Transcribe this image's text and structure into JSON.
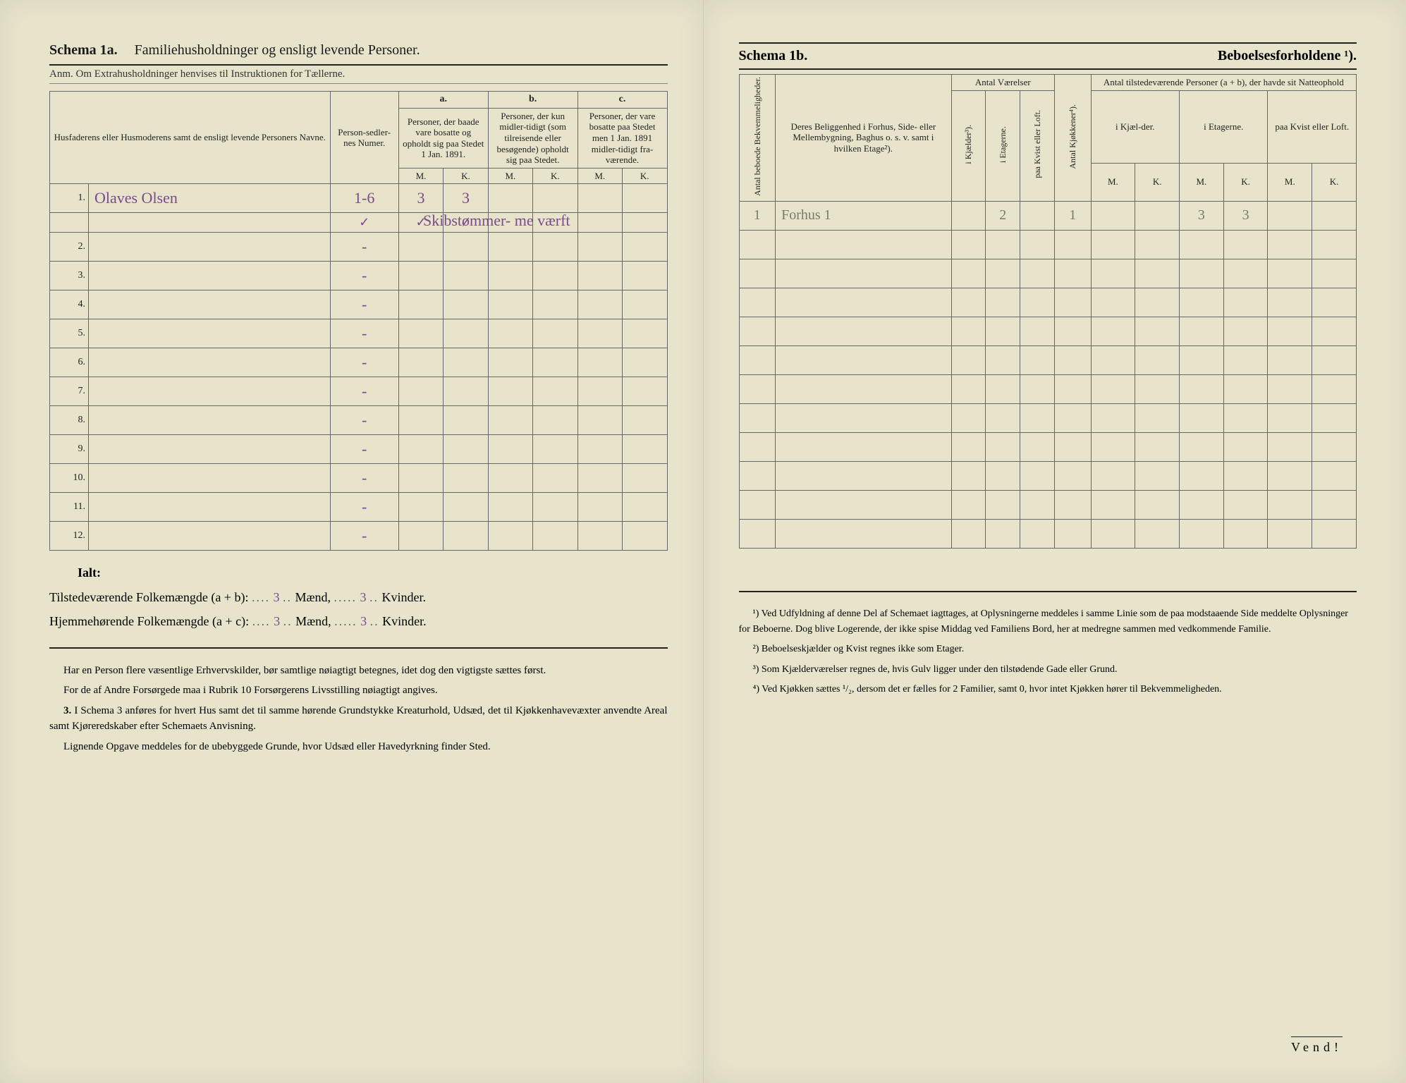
{
  "left": {
    "schemaLabel": "Schema 1a.",
    "schemaTitle": "Familiehusholdninger og ensligt levende Personer.",
    "anm": "Anm. Om Extrahusholdninger henvises til Instruktionen for Tællerne.",
    "header": {
      "names": "Husfaderens eller Husmoderens samt de ensligt levende Personers Navne.",
      "personsedler": "Person-sedler-nes Numer.",
      "a_label": "a.",
      "b_label": "b.",
      "c_label": "c.",
      "a_text": "Personer, der baade vare bosatte og opholdt sig paa Stedet 1 Jan. 1891.",
      "b_text": "Personer, der kun midler-tidigt (som tilreisende eller besøgende) opholdt sig paa Stedet.",
      "c_text": "Personer, der vare bosatte paa Stedet men 1 Jan. 1891 midler-tidigt fra-værende.",
      "M": "M.",
      "K": "K."
    },
    "rows": [
      {
        "n": "1.",
        "name": "Olaves Olsen",
        "ps": "1-6",
        "aM": "3",
        "aK": "3",
        "bM": "",
        "bK": "",
        "cM": "",
        "cK": ""
      },
      {
        "n": "2.",
        "name": "",
        "ps": "-",
        "aM": "",
        "aK": "",
        "bM": "",
        "bK": "",
        "cM": "",
        "cK": ""
      },
      {
        "n": "3.",
        "name": "",
        "ps": "-",
        "aM": "",
        "aK": "",
        "bM": "",
        "bK": "",
        "cM": "",
        "cK": ""
      },
      {
        "n": "4.",
        "name": "",
        "ps": "-",
        "aM": "",
        "aK": "",
        "bM": "",
        "bK": "",
        "cM": "",
        "cK": ""
      },
      {
        "n": "5.",
        "name": "",
        "ps": "-",
        "aM": "",
        "aK": "",
        "bM": "",
        "bK": "",
        "cM": "",
        "cK": ""
      },
      {
        "n": "6.",
        "name": "",
        "ps": "-",
        "aM": "",
        "aK": "",
        "bM": "",
        "bK": "",
        "cM": "",
        "cK": ""
      },
      {
        "n": "7.",
        "name": "",
        "ps": "-",
        "aM": "",
        "aK": "",
        "bM": "",
        "bK": "",
        "cM": "",
        "cK": ""
      },
      {
        "n": "8.",
        "name": "",
        "ps": "-",
        "aM": "",
        "aK": "",
        "bM": "",
        "bK": "",
        "cM": "",
        "cK": ""
      },
      {
        "n": "9.",
        "name": "",
        "ps": "-",
        "aM": "",
        "aK": "",
        "bM": "",
        "bK": "",
        "cM": "",
        "cK": ""
      },
      {
        "n": "10.",
        "name": "",
        "ps": "-",
        "aM": "",
        "aK": "",
        "bM": "",
        "bK": "",
        "cM": "",
        "cK": ""
      },
      {
        "n": "11.",
        "name": "",
        "ps": "-",
        "aM": "",
        "aK": "",
        "bM": "",
        "bK": "",
        "cM": "",
        "cK": ""
      },
      {
        "n": "12.",
        "name": "",
        "ps": "-",
        "aM": "",
        "aK": "",
        "bM": "",
        "bK": "",
        "cM": "",
        "cK": ""
      }
    ],
    "ticks_row2": {
      "ps": "✓",
      "aM": "✓",
      "aK": "✓"
    },
    "overlay_note": "Skibstømmer-\nme værft",
    "ialt": "Ialt:",
    "tilstede_label": "Tilstedeværende Folkemængde (a + b):",
    "hjemme_label": "Hjemmehørende Folkemængde (a + c):",
    "maend": "Mænd,",
    "kvinder": "Kvinder.",
    "tilstede_m": "3",
    "tilstede_k": "3",
    "hjemme_m": "3",
    "hjemme_k": "3",
    "footer": {
      "p1": "Har en Person flere væsentlige Erhvervskilder, bør samtlige nøiagtigt betegnes, idet dog den vigtigste sættes først.",
      "p2": "For de af Andre Forsørgede maa i Rubrik 10 Forsørgerens Livsstilling nøiagtigt angives.",
      "p3num": "3.",
      "p3": "I Schema 3 anføres for hvert Hus samt det til samme hørende Grundstykke Kreaturhold, Udsæd, det til Kjøkkenhavevæxter anvendte Areal samt Kjøreredskaber efter Schemaets Anvisning.",
      "p4": "Lignende Opgave meddeles for de ubebyggede Grunde, hvor Udsæd eller Havedyrkning finder Sted."
    }
  },
  "right": {
    "schemaLabel": "Schema 1b.",
    "schemaTitle": "Beboelsesforholdene ¹).",
    "header": {
      "antal_bekv": "Antal beboede Bekvemmeligheder.",
      "deres": "Deres Beliggenhed i Forhus, Side- eller Mellembygning, Baghus o. s. v. samt i hvilken Etage²).",
      "antal_vaer": "Antal Værelser",
      "i_kjaelder": "i Kjælder³).",
      "i_etagerne": "i Etagerne.",
      "paa_kvist": "paa Kvist eller Loft.",
      "antal_kjokken": "Antal Kjøkkener⁴).",
      "antal_pers": "Antal tilstedeværende Personer (a + b), der havde sit Natteophold",
      "i_kjael": "i Kjæl-der.",
      "i_etag": "i Etagerne.",
      "paa_kv": "paa Kvist eller Loft.",
      "M": "M.",
      "K": "K."
    },
    "rows": [
      {
        "bekv": "1",
        "bel": "Forhus 1",
        "kj": "",
        "et": "2",
        "kv": "",
        "kjok": "1",
        "natKjM": "",
        "natKjK": "",
        "natEtM": "3",
        "natEtK": "3",
        "natKvM": "",
        "natKvK": ""
      },
      {
        "bekv": "",
        "bel": "",
        "kj": "",
        "et": "",
        "kv": "",
        "kjok": "",
        "natKjM": "",
        "natKjK": "",
        "natEtM": "",
        "natEtK": "",
        "natKvM": "",
        "natKvK": ""
      },
      {
        "bekv": "",
        "bel": "",
        "kj": "",
        "et": "",
        "kv": "",
        "kjok": "",
        "natKjM": "",
        "natKjK": "",
        "natEtM": "",
        "natEtK": "",
        "natKvM": "",
        "natKvK": ""
      },
      {
        "bekv": "",
        "bel": "",
        "kj": "",
        "et": "",
        "kv": "",
        "kjok": "",
        "natKjM": "",
        "natKjK": "",
        "natEtM": "",
        "natEtK": "",
        "natKvM": "",
        "natKvK": ""
      },
      {
        "bekv": "",
        "bel": "",
        "kj": "",
        "et": "",
        "kv": "",
        "kjok": "",
        "natKjM": "",
        "natKjK": "",
        "natEtM": "",
        "natEtK": "",
        "natKvM": "",
        "natKvK": ""
      },
      {
        "bekv": "",
        "bel": "",
        "kj": "",
        "et": "",
        "kv": "",
        "kjok": "",
        "natKjM": "",
        "natKjK": "",
        "natEtM": "",
        "natEtK": "",
        "natKvM": "",
        "natKvK": ""
      },
      {
        "bekv": "",
        "bel": "",
        "kj": "",
        "et": "",
        "kv": "",
        "kjok": "",
        "natKjM": "",
        "natKjK": "",
        "natEtM": "",
        "natEtK": "",
        "natKvM": "",
        "natKvK": ""
      },
      {
        "bekv": "",
        "bel": "",
        "kj": "",
        "et": "",
        "kv": "",
        "kjok": "",
        "natKjM": "",
        "natKjK": "",
        "natEtM": "",
        "natEtK": "",
        "natKvM": "",
        "natKvK": ""
      },
      {
        "bekv": "",
        "bel": "",
        "kj": "",
        "et": "",
        "kv": "",
        "kjok": "",
        "natKjM": "",
        "natKjK": "",
        "natEtM": "",
        "natEtK": "",
        "natKvM": "",
        "natKvK": ""
      },
      {
        "bekv": "",
        "bel": "",
        "kj": "",
        "et": "",
        "kv": "",
        "kjok": "",
        "natKjM": "",
        "natKjK": "",
        "natEtM": "",
        "natEtK": "",
        "natKvM": "",
        "natKvK": ""
      },
      {
        "bekv": "",
        "bel": "",
        "kj": "",
        "et": "",
        "kv": "",
        "kjok": "",
        "natKjM": "",
        "natKjK": "",
        "natEtM": "",
        "natEtK": "",
        "natKvM": "",
        "natKvK": ""
      },
      {
        "bekv": "",
        "bel": "",
        "kj": "",
        "et": "",
        "kv": "",
        "kjok": "",
        "natKjM": "",
        "natKjK": "",
        "natEtM": "",
        "natEtK": "",
        "natKvM": "",
        "natKvK": ""
      }
    ],
    "footnotes": {
      "f1": "¹) Ved Udfyldning af denne Del af Schemaet iagttages, at Oplysningerne meddeles i samme Linie som de paa modstaaende Side meddelte Oplysninger for Beboerne. Dog blive Logerende, der ikke spise Middag ved Familiens Bord, her at medregne sammen med vedkommende Familie.",
      "f2": "²) Beboelseskjælder og Kvist regnes ikke som Etager.",
      "f3": "³) Som Kjælderværelser regnes de, hvis Gulv ligger under den tilstødende Gade eller Grund.",
      "f4": "⁴) Ved Kjøkken sættes ¹/₂, dersom det er fælles for 2 Familier, samt 0, hvor intet Kjøkken hører til Bekvemmeligheden."
    },
    "vend": "Vend!"
  },
  "style": {
    "page_bg": "#e8e4cc",
    "ink": "#1a1a1a",
    "rule": "#222222",
    "handwriting_color": "#7a4a8c",
    "pencil_color": "#7a7a6a",
    "font_body_pt": 15,
    "font_header_pt": 20,
    "table_border": "#666666"
  }
}
